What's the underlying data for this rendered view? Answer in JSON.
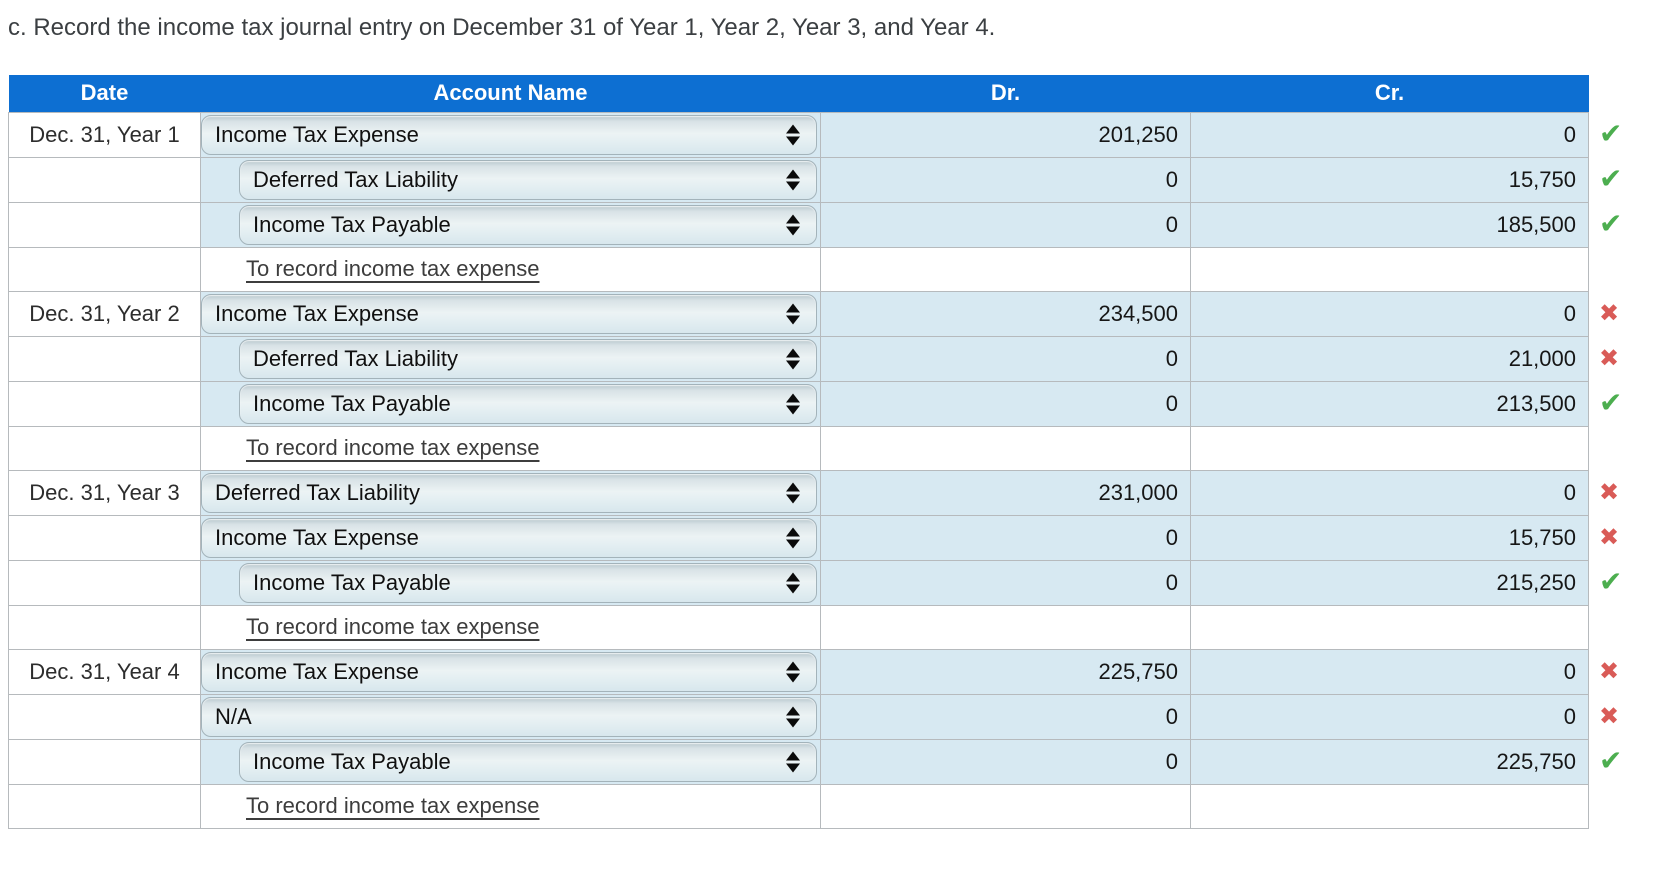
{
  "page": {
    "title": "c. Record the income tax journal entry on December 31 of Year 1, Year 2, Year 3, and Year 4."
  },
  "colors": {
    "header_bg": "#0d6fd2",
    "cell_bg": "#d7e9f2",
    "correct": "#4cae4f",
    "incorrect": "#d95b57"
  },
  "icons": {
    "correct_mark": "✔",
    "incorrect_mark": "✖",
    "select_spinner": "up-down-arrows"
  },
  "table": {
    "headers": {
      "date": "Date",
      "account": "Account Name",
      "dr": "Dr.",
      "cr": "Cr."
    },
    "groups": [
      {
        "date": "Dec. 31, Year 1",
        "memo": "To record income tax expense",
        "lines": [
          {
            "account": "Income Tax Expense",
            "indent": false,
            "dr": "201,250",
            "cr": "0",
            "mark": "correct"
          },
          {
            "account": "Deferred Tax Liability",
            "indent": true,
            "dr": "0",
            "cr": "15,750",
            "mark": "correct"
          },
          {
            "account": "Income Tax Payable",
            "indent": true,
            "dr": "0",
            "cr": "185,500",
            "mark": "correct"
          }
        ]
      },
      {
        "date": "Dec. 31, Year 2",
        "memo": "To record income tax expense",
        "lines": [
          {
            "account": "Income Tax Expense",
            "indent": false,
            "dr": "234,500",
            "cr": "0",
            "mark": "incorrect"
          },
          {
            "account": "Deferred Tax Liability",
            "indent": true,
            "dr": "0",
            "cr": "21,000",
            "mark": "incorrect"
          },
          {
            "account": "Income Tax Payable",
            "indent": true,
            "dr": "0",
            "cr": "213,500",
            "mark": "correct"
          }
        ]
      },
      {
        "date": "Dec. 31, Year 3",
        "memo": "To record income tax expense",
        "lines": [
          {
            "account": "Deferred Tax Liability",
            "indent": false,
            "dr": "231,000",
            "cr": "0",
            "mark": "incorrect"
          },
          {
            "account": "Income Tax Expense",
            "indent": false,
            "dr": "0",
            "cr": "15,750",
            "mark": "incorrect"
          },
          {
            "account": "Income Tax Payable",
            "indent": true,
            "dr": "0",
            "cr": "215,250",
            "mark": "correct"
          }
        ]
      },
      {
        "date": "Dec. 31, Year 4",
        "memo": "To record income tax expense",
        "lines": [
          {
            "account": "Income Tax Expense",
            "indent": false,
            "dr": "225,750",
            "cr": "0",
            "mark": "incorrect"
          },
          {
            "account": "N/A",
            "indent": false,
            "dr": "0",
            "cr": "0",
            "mark": "incorrect"
          },
          {
            "account": "Income Tax Payable",
            "indent": true,
            "dr": "0",
            "cr": "225,750",
            "mark": "correct"
          }
        ]
      }
    ]
  }
}
